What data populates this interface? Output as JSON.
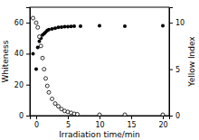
{
  "chart_data": {
    "type": "scatter",
    "xlabel": "Irradiation time/min",
    "ylabel": "Whiteness",
    "y2label": "Yellow Index",
    "xlim": [
      -1,
      21
    ],
    "xticks": [
      0,
      5,
      10,
      15,
      20
    ],
    "ylim": [
      0,
      70
    ],
    "yticks": [
      0,
      20,
      40,
      60
    ],
    "y2lim": [
      0,
      11.67
    ],
    "y2ticks": [
      0,
      5,
      10
    ],
    "grid": false,
    "series": [
      {
        "color": "#000000",
        "marker": "filled-circle",
        "x": [
          -0.5,
          0,
          0.25,
          0.5,
          0.75,
          1.0,
          1.25,
          1.5,
          1.75,
          2.0,
          2.5,
          3.0,
          3.5,
          4.0,
          4.5,
          5.0,
          5.5,
          6.0,
          7.0,
          10.0,
          14.0,
          20.0
        ],
        "values": [
          40,
          30,
          44,
          48,
          50,
          52,
          53,
          54,
          55,
          55.5,
          56,
          56.5,
          57,
          57.2,
          57.4,
          57.5,
          57.6,
          57.7,
          57.8,
          58.0,
          57.8,
          58.0
        ]
      },
      {
        "axis": "y2",
        "color": "#000000",
        "marker": "open-circle",
        "x": [
          -0.5,
          0,
          0.25,
          0.5,
          0.75,
          1.0,
          1.25,
          1.5,
          1.75,
          2.0,
          2.5,
          3.0,
          3.5,
          4.0,
          4.5,
          5.0,
          5.5,
          6.0,
          6.5,
          10.0,
          14.0,
          20.0
        ],
        "values": [
          10.5,
          10.0,
          9.5,
          8.5,
          7.5,
          6.2,
          5.0,
          4.0,
          3.2,
          2.5,
          1.8,
          1.3,
          1.0,
          0.7,
          0.5,
          0.4,
          0.3,
          0.2,
          0.15,
          0.1,
          0.1,
          0.1
        ]
      }
    ]
  }
}
